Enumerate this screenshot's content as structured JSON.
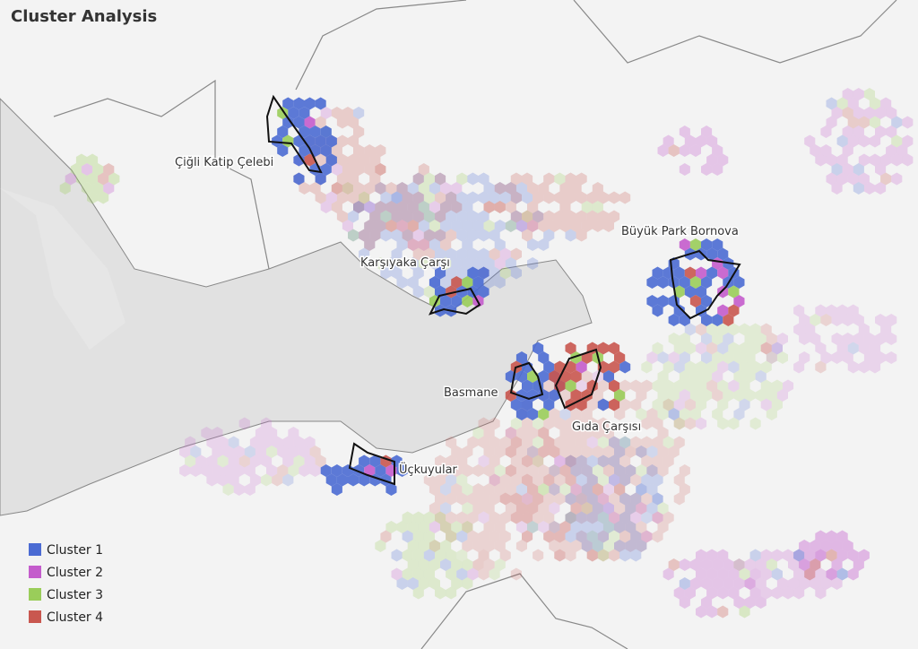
{
  "title": "Cluster Analysis",
  "places": [
    {
      "label": "Çiğli Katip Çelebi"
    },
    {
      "label": "Karşıyaka Çarşı"
    },
    {
      "label": "Büyük Park Bornova"
    },
    {
      "label": "Basmane"
    },
    {
      "label": "Gıda Çarşısı"
    },
    {
      "label": "Üçkuyular"
    }
  ],
  "legend": [
    {
      "label": "Cluster 1",
      "color": "#4b6bd3"
    },
    {
      "label": "Cluster 2",
      "color": "#c45ccc"
    },
    {
      "label": "Cluster 3",
      "color": "#9acd5a"
    },
    {
      "label": "Cluster 4",
      "color": "#c9574f"
    }
  ]
}
